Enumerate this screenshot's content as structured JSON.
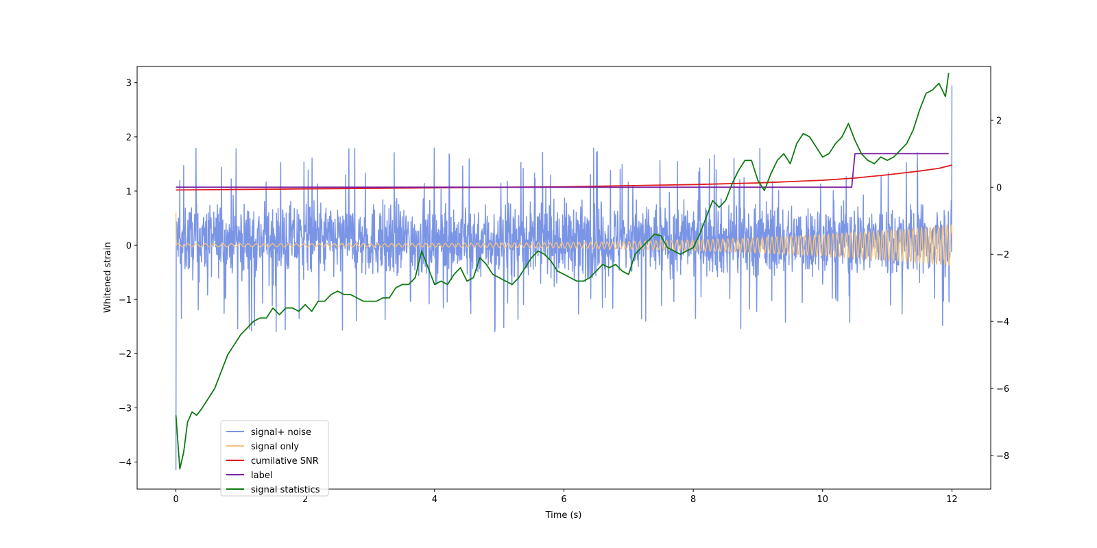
{
  "chart_data": {
    "type": "line",
    "title": "",
    "xlabel": "Time (s)",
    "ylabel": "Whitened strain",
    "ylabel_right": "",
    "xlim": [
      -0.6,
      12.6
    ],
    "ylim": [
      -4.5,
      3.3
    ],
    "ylim_right": [
      -9.0,
      3.6
    ],
    "x_ticks": [
      0,
      2,
      4,
      6,
      8,
      10,
      12
    ],
    "x_tick_labels": [
      "0",
      "2",
      "4",
      "6",
      "8",
      "10",
      "12"
    ],
    "y_ticks": [
      3,
      2,
      1,
      0,
      -1,
      -2,
      -3,
      -4
    ],
    "y_tick_labels": [
      "3",
      "2",
      "1",
      "0",
      "−1",
      "−2",
      "−3",
      "−4"
    ],
    "y_ticks_right": [
      2,
      0,
      -2,
      -4,
      -6,
      -8
    ],
    "y_tick_labels_right": [
      "2",
      "0",
      "−2",
      "−4",
      "−6",
      "−8"
    ],
    "grid": false,
    "legend": {
      "placement": "lower-left",
      "entries": [
        "signal+ noise",
        "signal only",
        "cumilative SNR",
        "label",
        "signal statistics"
      ]
    },
    "series": [
      {
        "name": "signal+ noise",
        "axis": "left",
        "color": "#7b95e6",
        "kind": "noise",
        "x_range": [
          0,
          12
        ],
        "center": 0.1,
        "envelope": [
          -1.3,
          1.5
        ],
        "extremes": {
          "max": 2.95,
          "min": -4.15
        }
      },
      {
        "name": "signal only",
        "axis": "left",
        "color": "#f5c27a",
        "kind": "chirp",
        "x_range": [
          0,
          12
        ],
        "amplitude_start": 0.03,
        "amplitude_end": 0.38
      },
      {
        "name": "cumilative SNR",
        "axis": "left",
        "color": "#e01b1b",
        "x": [
          0,
          1,
          2,
          3,
          4,
          5,
          6,
          7,
          8,
          9,
          10,
          10.5,
          11,
          11.5,
          11.8,
          12
        ],
        "y": [
          1.02,
          1.03,
          1.04,
          1.05,
          1.06,
          1.07,
          1.08,
          1.1,
          1.12,
          1.15,
          1.2,
          1.24,
          1.3,
          1.37,
          1.42,
          1.48
        ]
      },
      {
        "name": "label",
        "axis": "right",
        "color": "#7a1fa2",
        "x": [
          0,
          10.45,
          10.5,
          11.95
        ],
        "y": [
          0,
          0,
          1,
          1
        ]
      },
      {
        "name": "signal statistics",
        "axis": "right",
        "color": "#0f7a0f",
        "x": [
          0,
          0.06,
          0.12,
          0.18,
          0.25,
          0.32,
          0.4,
          0.5,
          0.6,
          0.7,
          0.8,
          0.9,
          1.0,
          1.1,
          1.2,
          1.3,
          1.4,
          1.5,
          1.6,
          1.7,
          1.8,
          1.9,
          2.0,
          2.1,
          2.2,
          2.3,
          2.4,
          2.5,
          2.6,
          2.7,
          2.8,
          2.9,
          3.0,
          3.1,
          3.2,
          3.3,
          3.4,
          3.5,
          3.6,
          3.7,
          3.8,
          3.9,
          4.0,
          4.1,
          4.2,
          4.3,
          4.4,
          4.5,
          4.6,
          4.7,
          4.8,
          4.9,
          5.0,
          5.1,
          5.2,
          5.3,
          5.4,
          5.5,
          5.6,
          5.7,
          5.8,
          5.9,
          6.0,
          6.1,
          6.2,
          6.3,
          6.4,
          6.5,
          6.6,
          6.7,
          6.8,
          6.9,
          7.0,
          7.1,
          7.2,
          7.3,
          7.4,
          7.5,
          7.6,
          7.7,
          7.8,
          7.9,
          8.0,
          8.1,
          8.2,
          8.3,
          8.4,
          8.5,
          8.6,
          8.7,
          8.8,
          8.9,
          9.0,
          9.1,
          9.2,
          9.3,
          9.4,
          9.5,
          9.6,
          9.7,
          9.8,
          9.9,
          10.0,
          10.1,
          10.2,
          10.3,
          10.4,
          10.5,
          10.6,
          10.7,
          10.8,
          10.9,
          11.0,
          11.1,
          11.2,
          11.3,
          11.4,
          11.5,
          11.6,
          11.7,
          11.8,
          11.9,
          11.95
        ],
        "y": [
          -6.8,
          -8.4,
          -7.9,
          -7.0,
          -6.7,
          -6.8,
          -6.6,
          -6.3,
          -6.0,
          -5.5,
          -5.0,
          -4.7,
          -4.4,
          -4.2,
          -4.0,
          -3.9,
          -3.9,
          -3.6,
          -3.8,
          -3.6,
          -3.6,
          -3.7,
          -3.5,
          -3.7,
          -3.4,
          -3.4,
          -3.2,
          -3.1,
          -3.2,
          -3.2,
          -3.3,
          -3.4,
          -3.4,
          -3.4,
          -3.3,
          -3.3,
          -3.0,
          -2.9,
          -2.9,
          -2.7,
          -1.9,
          -2.4,
          -2.9,
          -2.8,
          -2.9,
          -2.6,
          -2.4,
          -2.8,
          -2.7,
          -2.1,
          -2.3,
          -2.6,
          -2.7,
          -2.8,
          -2.9,
          -2.7,
          -2.4,
          -2.1,
          -1.9,
          -2.0,
          -2.2,
          -2.5,
          -2.6,
          -2.7,
          -2.8,
          -2.8,
          -2.7,
          -2.5,
          -2.3,
          -2.4,
          -2.3,
          -2.5,
          -2.6,
          -2.0,
          -1.8,
          -1.6,
          -1.4,
          -1.45,
          -1.8,
          -1.9,
          -2.0,
          -1.9,
          -1.8,
          -1.4,
          -0.9,
          -0.4,
          -0.6,
          -0.4,
          0.1,
          0.5,
          0.8,
          0.8,
          0.2,
          -0.1,
          0.4,
          0.8,
          1.0,
          0.7,
          1.3,
          1.6,
          1.5,
          1.2,
          0.9,
          1.0,
          1.3,
          1.5,
          1.9,
          1.4,
          1.0,
          0.8,
          0.7,
          0.9,
          0.8,
          0.9,
          1.1,
          1.3,
          1.7,
          2.3,
          2.8,
          2.9,
          3.1,
          2.7,
          3.4
        ]
      }
    ]
  }
}
